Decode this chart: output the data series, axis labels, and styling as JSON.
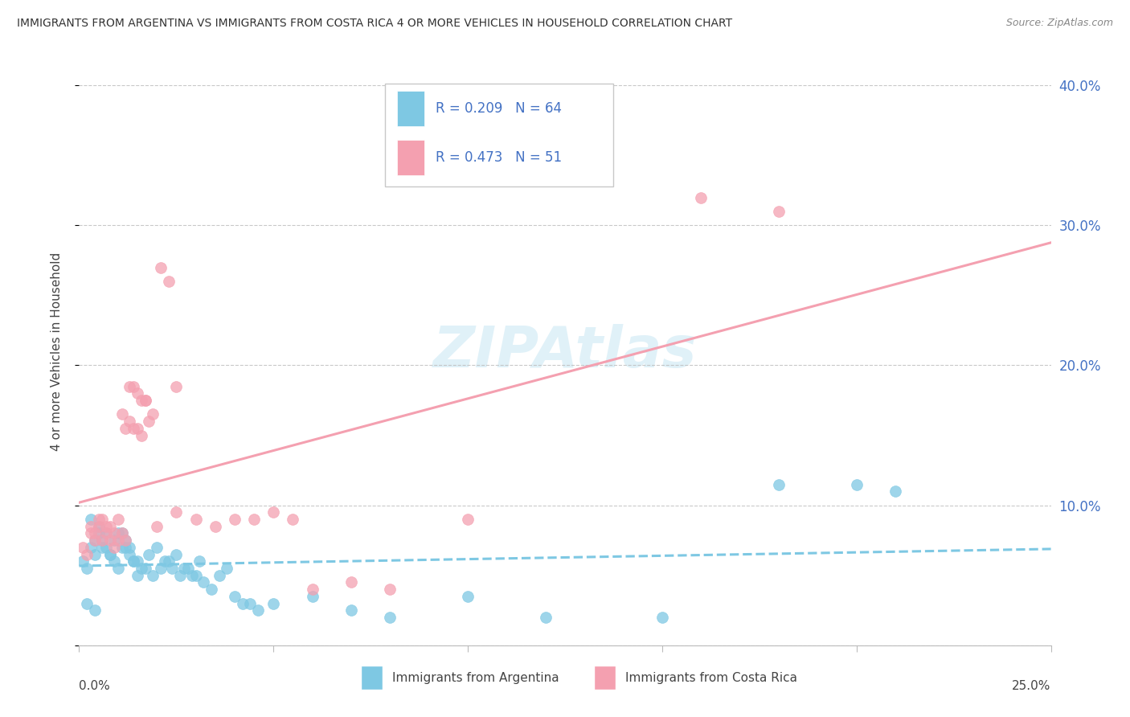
{
  "title": "IMMIGRANTS FROM ARGENTINA VS IMMIGRANTS FROM COSTA RICA 4 OR MORE VEHICLES IN HOUSEHOLD CORRELATION CHART",
  "source": "Source: ZipAtlas.com",
  "ylabel": "4 or more Vehicles in Household",
  "xmin": 0.0,
  "xmax": 0.25,
  "ymin": 0.0,
  "ymax": 0.42,
  "yticks": [
    0.0,
    0.1,
    0.2,
    0.3,
    0.4
  ],
  "ytick_labels": [
    "",
    "10.0%",
    "20.0%",
    "30.0%",
    "40.0%"
  ],
  "color_argentina": "#7ec8e3",
  "color_costarica": "#f4a0b0",
  "watermark_text": "ZIPAtlas",
  "legend_r1": "R = 0.209",
  "legend_n1": "N = 64",
  "legend_r2": "R = 0.473",
  "legend_n2": "N = 51",
  "argentina_x": [
    0.001,
    0.002,
    0.003,
    0.004,
    0.005,
    0.006,
    0.007,
    0.008,
    0.009,
    0.01,
    0.011,
    0.012,
    0.013,
    0.014,
    0.015,
    0.003,
    0.005,
    0.007,
    0.009,
    0.011,
    0.013,
    0.015,
    0.017,
    0.019,
    0.021,
    0.023,
    0.025,
    0.027,
    0.029,
    0.031,
    0.004,
    0.006,
    0.008,
    0.01,
    0.012,
    0.014,
    0.016,
    0.018,
    0.02,
    0.022,
    0.024,
    0.026,
    0.028,
    0.03,
    0.032,
    0.034,
    0.036,
    0.038,
    0.04,
    0.042,
    0.044,
    0.046,
    0.05,
    0.06,
    0.07,
    0.08,
    0.1,
    0.12,
    0.15,
    0.21,
    0.002,
    0.004,
    0.18,
    0.2
  ],
  "argentina_y": [
    0.06,
    0.055,
    0.07,
    0.065,
    0.08,
    0.075,
    0.07,
    0.065,
    0.06,
    0.055,
    0.08,
    0.075,
    0.07,
    0.06,
    0.05,
    0.09,
    0.085,
    0.08,
    0.075,
    0.07,
    0.065,
    0.06,
    0.055,
    0.05,
    0.055,
    0.06,
    0.065,
    0.055,
    0.05,
    0.06,
    0.075,
    0.07,
    0.065,
    0.08,
    0.07,
    0.06,
    0.055,
    0.065,
    0.07,
    0.06,
    0.055,
    0.05,
    0.055,
    0.05,
    0.045,
    0.04,
    0.05,
    0.055,
    0.035,
    0.03,
    0.03,
    0.025,
    0.03,
    0.035,
    0.025,
    0.02,
    0.035,
    0.02,
    0.02,
    0.11,
    0.03,
    0.025,
    0.115,
    0.115
  ],
  "costarica_x": [
    0.001,
    0.002,
    0.003,
    0.004,
    0.005,
    0.006,
    0.007,
    0.008,
    0.009,
    0.01,
    0.011,
    0.012,
    0.013,
    0.014,
    0.015,
    0.016,
    0.017,
    0.018,
    0.003,
    0.005,
    0.007,
    0.009,
    0.011,
    0.013,
    0.015,
    0.017,
    0.019,
    0.021,
    0.023,
    0.025,
    0.004,
    0.006,
    0.008,
    0.01,
    0.012,
    0.014,
    0.016,
    0.02,
    0.025,
    0.03,
    0.035,
    0.04,
    0.045,
    0.05,
    0.055,
    0.06,
    0.07,
    0.08,
    0.1,
    0.16,
    0.18
  ],
  "costarica_y": [
    0.07,
    0.065,
    0.08,
    0.075,
    0.085,
    0.09,
    0.08,
    0.075,
    0.07,
    0.075,
    0.08,
    0.075,
    0.185,
    0.185,
    0.18,
    0.175,
    0.175,
    0.16,
    0.085,
    0.09,
    0.085,
    0.08,
    0.165,
    0.16,
    0.155,
    0.175,
    0.165,
    0.27,
    0.26,
    0.185,
    0.08,
    0.075,
    0.085,
    0.09,
    0.155,
    0.155,
    0.15,
    0.085,
    0.095,
    0.09,
    0.085,
    0.09,
    0.09,
    0.095,
    0.09,
    0.04,
    0.045,
    0.04,
    0.09,
    0.32,
    0.31
  ]
}
